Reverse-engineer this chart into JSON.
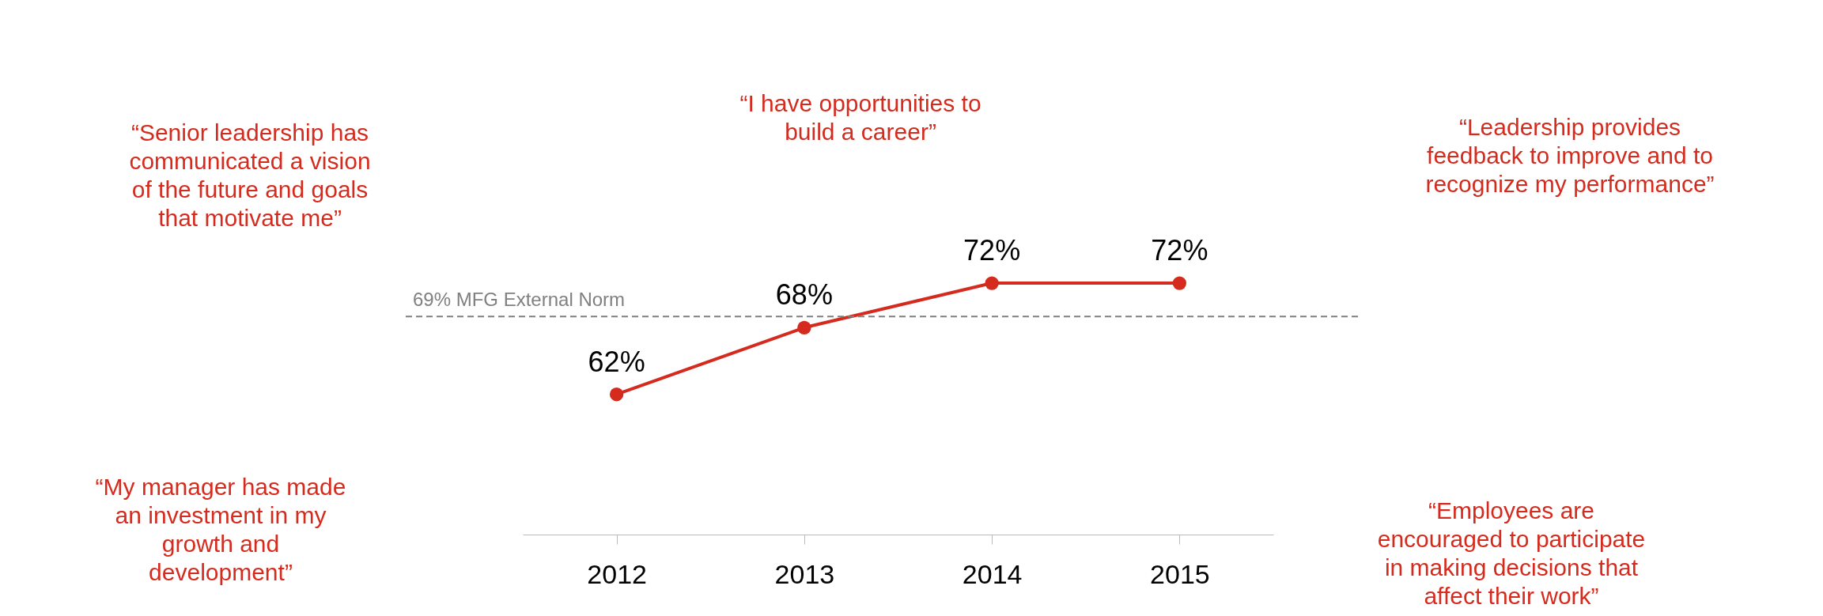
{
  "chart_data": {
    "type": "line",
    "categories": [
      "2012",
      "2013",
      "2014",
      "2015"
    ],
    "series": [
      {
        "color": "#d42b1e",
        "values": [
          62,
          68,
          72,
          72
        ],
        "value_labels": [
          "62%",
          "68%",
          "72%",
          "72%"
        ]
      }
    ],
    "marker": "circle",
    "line_style": "solid",
    "ref_lines": [
      {
        "axis": "y",
        "value": 69,
        "label": "69% MFG External Norm",
        "color": "#808080",
        "line_style": "dashed"
      }
    ],
    "annotations": [
      "“Senior leadership has\ncommunicated a vision\nof the future and goals\nthat motivate me”",
      "“I have opportunities to\nbuild a career”",
      "“Leadership provides\nfeedback to improve and to\nrecognize my performance”",
      "“My manager has made\nan investment in my\ngrowth and\ndevelopment”",
      "“Employees are\nencouraged to participate\nin making decisions that\naffect their work”"
    ]
  }
}
